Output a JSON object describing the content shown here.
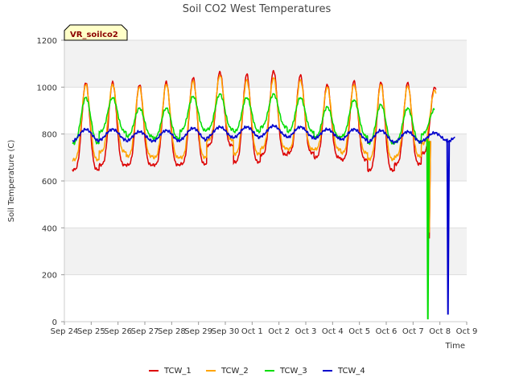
{
  "chart_data": {
    "type": "line",
    "title": "Soil CO2 West Temperatures",
    "xlabel": "Time",
    "ylabel": "Soil Temperature (C)",
    "badge": "VR_soilco2",
    "ylim": [
      0,
      1200
    ],
    "yticks": [
      0,
      200,
      400,
      600,
      800,
      1000,
      1200
    ],
    "xlim": [
      0,
      15
    ],
    "xtick_labels": [
      "Sep 24",
      "Sep 25",
      "Sep 26",
      "Sep 27",
      "Sep 28",
      "Sep 29",
      "Sep 30",
      "Oct 1",
      "Oct 2",
      "Oct 3",
      "Oct 4",
      "Oct 5",
      "Oct 6",
      "Oct 7",
      "Oct 8",
      "Oct 9"
    ],
    "grid": true,
    "legend_position": "bottom",
    "series": [
      {
        "name": "TCW_1",
        "color": "#dd0000",
        "day_max": [
          1020,
          1020,
          1010,
          1022,
          1040,
          1065,
          1055,
          1070,
          1050,
          1012,
          1025,
          1022,
          1018,
          1000
        ],
        "day_min": [
          648,
          668,
          668,
          668,
          672,
          752,
          680,
          712,
          720,
          700,
          690,
          645,
          672,
          718
        ],
        "sharpness": 2.4,
        "drop": {
          "x": 13.6,
          "to": 355
        }
      },
      {
        "name": "TCW_2",
        "color": "#ffa500",
        "day_max": [
          1010,
          1012,
          1000,
          1012,
          1025,
          1050,
          1030,
          1040,
          1030,
          1000,
          1010,
          1010,
          1005,
          985
        ],
        "day_min": [
          690,
          725,
          705,
          700,
          700,
          775,
          715,
          740,
          735,
          735,
          720,
          692,
          705,
          760
        ],
        "sharpness": 2.2,
        "drop": {
          "x": 13.6,
          "to": 380
        }
      },
      {
        "name": "TCW_3",
        "color": "#00dd00",
        "day_max": [
          955,
          955,
          910,
          910,
          960,
          970,
          955,
          970,
          955,
          915,
          945,
          925,
          910,
          905
        ],
        "day_min": [
          760,
          810,
          790,
          780,
          815,
          820,
          810,
          830,
          810,
          785,
          790,
          760,
          765,
          800
        ],
        "sharpness": 1.6,
        "drop": {
          "x": 13.55,
          "to": 10
        }
      },
      {
        "name": "TCW_4",
        "color": "#0000cc",
        "day_max": [
          820,
          820,
          810,
          815,
          825,
          830,
          830,
          835,
          830,
          820,
          820,
          815,
          810,
          805
        ],
        "day_min": [
          770,
          775,
          770,
          770,
          775,
          785,
          785,
          790,
          785,
          780,
          775,
          765,
          765,
          770
        ],
        "sharpness": 1,
        "drop": {
          "x": 14.3,
          "to": 30
        }
      }
    ]
  }
}
